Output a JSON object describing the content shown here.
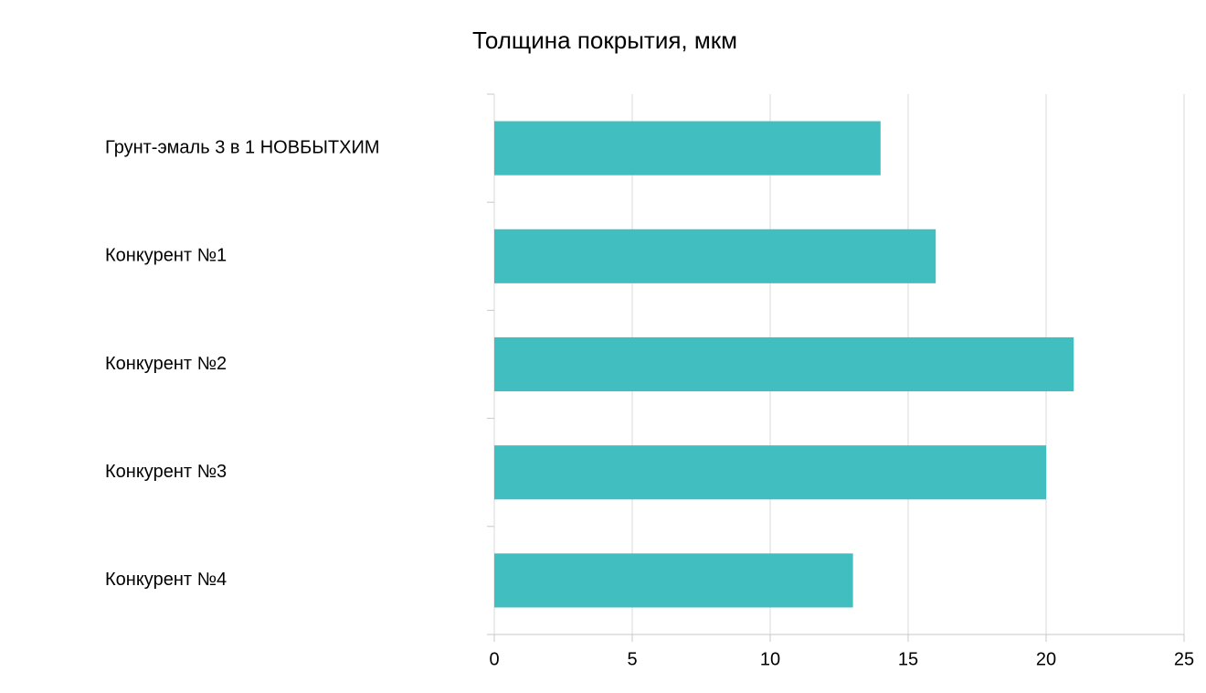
{
  "chart_data": {
    "type": "bar",
    "orientation": "horizontal",
    "title": "Толщина покрытия, мкм",
    "categories": [
      "Грунт-эмаль 3 в 1 НОВБЫТХИМ",
      "Конкурент №1",
      "Конкурент №2",
      "Конкурент №3",
      "Конкурент №4"
    ],
    "values": [
      14,
      16,
      21,
      20,
      13
    ],
    "color": "#40bec0",
    "xlim": [
      0,
      25
    ],
    "xticks": [
      0,
      5,
      10,
      15,
      20,
      25
    ],
    "grid": true
  }
}
